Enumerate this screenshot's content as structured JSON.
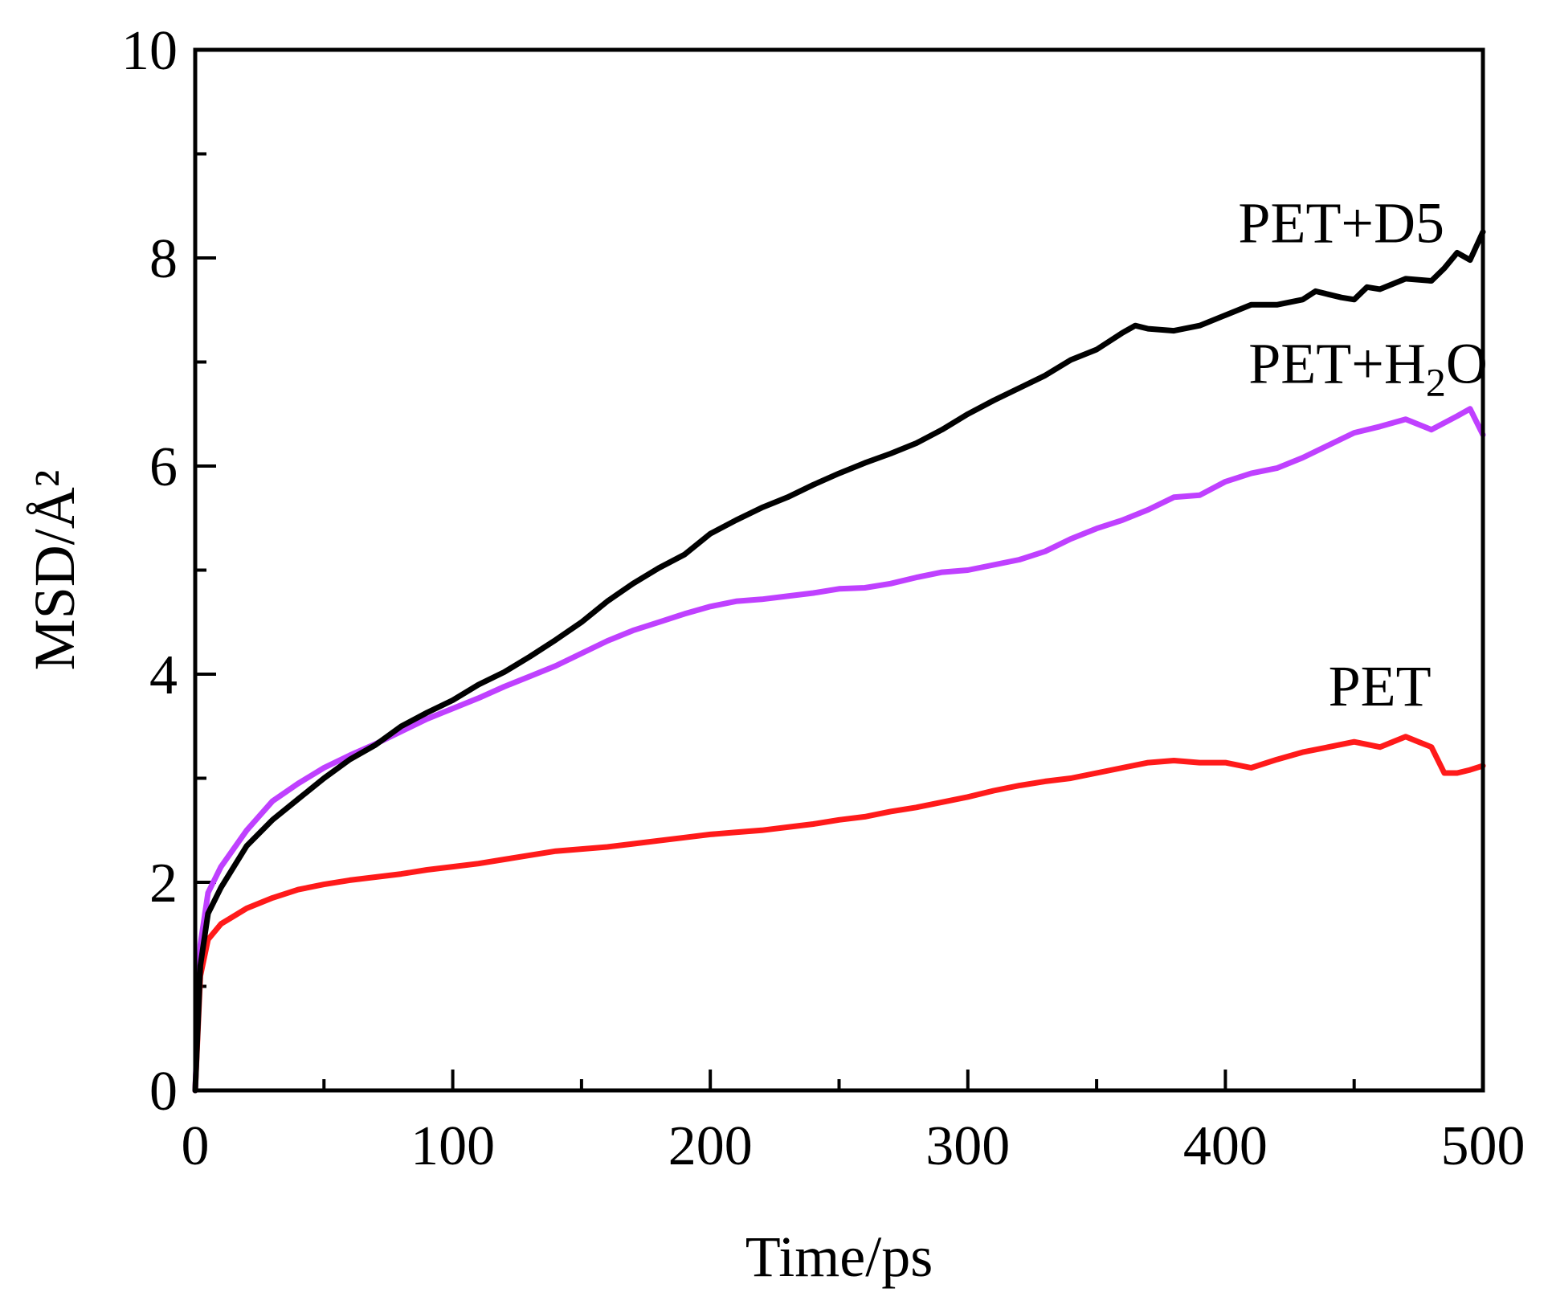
{
  "chart_data": {
    "type": "line",
    "title": "",
    "xlabel": "Time/ps",
    "ylabel": "MSD/Å²",
    "xlim": [
      0,
      500
    ],
    "ylim": [
      0,
      10
    ],
    "xticks": [
      0,
      100,
      200,
      300,
      400,
      500
    ],
    "yticks": [
      0,
      2,
      4,
      6,
      8,
      10
    ],
    "grid": false,
    "legend": "inline labels",
    "series": [
      {
        "name": "PET+D5",
        "color": "#000000",
        "x": [
          0,
          2,
          5,
          10,
          20,
          30,
          40,
          50,
          60,
          70,
          80,
          90,
          100,
          110,
          120,
          130,
          140,
          150,
          160,
          170,
          180,
          190,
          200,
          210,
          220,
          230,
          240,
          250,
          260,
          270,
          280,
          290,
          300,
          310,
          320,
          330,
          340,
          350,
          360,
          365,
          370,
          380,
          390,
          400,
          410,
          420,
          430,
          435,
          440,
          445,
          450,
          455,
          460,
          470,
          480,
          485,
          490,
          495,
          500
        ],
        "y": [
          0,
          1.2,
          1.7,
          1.95,
          2.35,
          2.6,
          2.8,
          3.0,
          3.18,
          3.32,
          3.5,
          3.63,
          3.75,
          3.9,
          4.02,
          4.17,
          4.33,
          4.5,
          4.7,
          4.87,
          5.02,
          5.15,
          5.35,
          5.48,
          5.6,
          5.7,
          5.82,
          5.93,
          6.03,
          6.12,
          6.22,
          6.35,
          6.5,
          6.63,
          6.75,
          6.87,
          7.02,
          7.12,
          7.28,
          7.35,
          7.32,
          7.3,
          7.35,
          7.45,
          7.55,
          7.55,
          7.6,
          7.68,
          7.65,
          7.62,
          7.6,
          7.72,
          7.7,
          7.8,
          7.78,
          7.9,
          8.05,
          7.98,
          8.25
        ]
      },
      {
        "name": "PET+H2O",
        "color": "#bf40ff",
        "x": [
          0,
          2,
          5,
          10,
          20,
          30,
          40,
          50,
          60,
          70,
          80,
          90,
          100,
          110,
          120,
          130,
          140,
          150,
          160,
          170,
          180,
          190,
          200,
          210,
          220,
          230,
          240,
          250,
          260,
          270,
          280,
          290,
          300,
          310,
          320,
          330,
          340,
          350,
          360,
          370,
          380,
          390,
          400,
          410,
          420,
          430,
          440,
          450,
          460,
          470,
          480,
          490,
          495,
          500
        ],
        "y": [
          0,
          1.4,
          1.9,
          2.15,
          2.5,
          2.78,
          2.95,
          3.1,
          3.22,
          3.33,
          3.45,
          3.57,
          3.67,
          3.77,
          3.88,
          3.98,
          4.08,
          4.2,
          4.32,
          4.42,
          4.5,
          4.58,
          4.65,
          4.7,
          4.72,
          4.75,
          4.78,
          4.82,
          4.83,
          4.87,
          4.93,
          4.98,
          5.0,
          5.05,
          5.1,
          5.18,
          5.3,
          5.4,
          5.48,
          5.58,
          5.7,
          5.72,
          5.85,
          5.93,
          5.98,
          6.08,
          6.2,
          6.32,
          6.38,
          6.45,
          6.35,
          6.48,
          6.55,
          6.3
        ]
      },
      {
        "name": "PET",
        "color": "#ff1a1a",
        "x": [
          0,
          2,
          5,
          10,
          20,
          30,
          40,
          50,
          60,
          70,
          80,
          90,
          100,
          110,
          120,
          130,
          140,
          150,
          160,
          170,
          180,
          190,
          200,
          210,
          220,
          230,
          240,
          250,
          260,
          270,
          280,
          290,
          300,
          310,
          320,
          330,
          340,
          350,
          360,
          370,
          380,
          390,
          400,
          410,
          420,
          430,
          440,
          450,
          460,
          470,
          475,
          480,
          485,
          490,
          495,
          500
        ],
        "y": [
          0,
          1.1,
          1.45,
          1.6,
          1.75,
          1.85,
          1.93,
          1.98,
          2.02,
          2.05,
          2.08,
          2.12,
          2.15,
          2.18,
          2.22,
          2.26,
          2.3,
          2.32,
          2.34,
          2.37,
          2.4,
          2.43,
          2.46,
          2.48,
          2.5,
          2.53,
          2.56,
          2.6,
          2.63,
          2.68,
          2.72,
          2.77,
          2.82,
          2.88,
          2.93,
          2.97,
          3.0,
          3.05,
          3.1,
          3.15,
          3.17,
          3.15,
          3.15,
          3.1,
          3.18,
          3.25,
          3.3,
          3.35,
          3.3,
          3.4,
          3.35,
          3.3,
          3.05,
          3.05,
          3.08,
          3.12
        ]
      }
    ],
    "labels": [
      {
        "text": "PET+D5",
        "series": "PET+D5",
        "x": 405,
        "y": 8.15
      },
      {
        "text": "PET+H",
        "sub": "2",
        "tail": "O",
        "series": "PET+H2O",
        "x": 409,
        "y": 6.8
      },
      {
        "text": "PET",
        "series": "PET",
        "x": 440,
        "y": 3.7
      }
    ]
  }
}
